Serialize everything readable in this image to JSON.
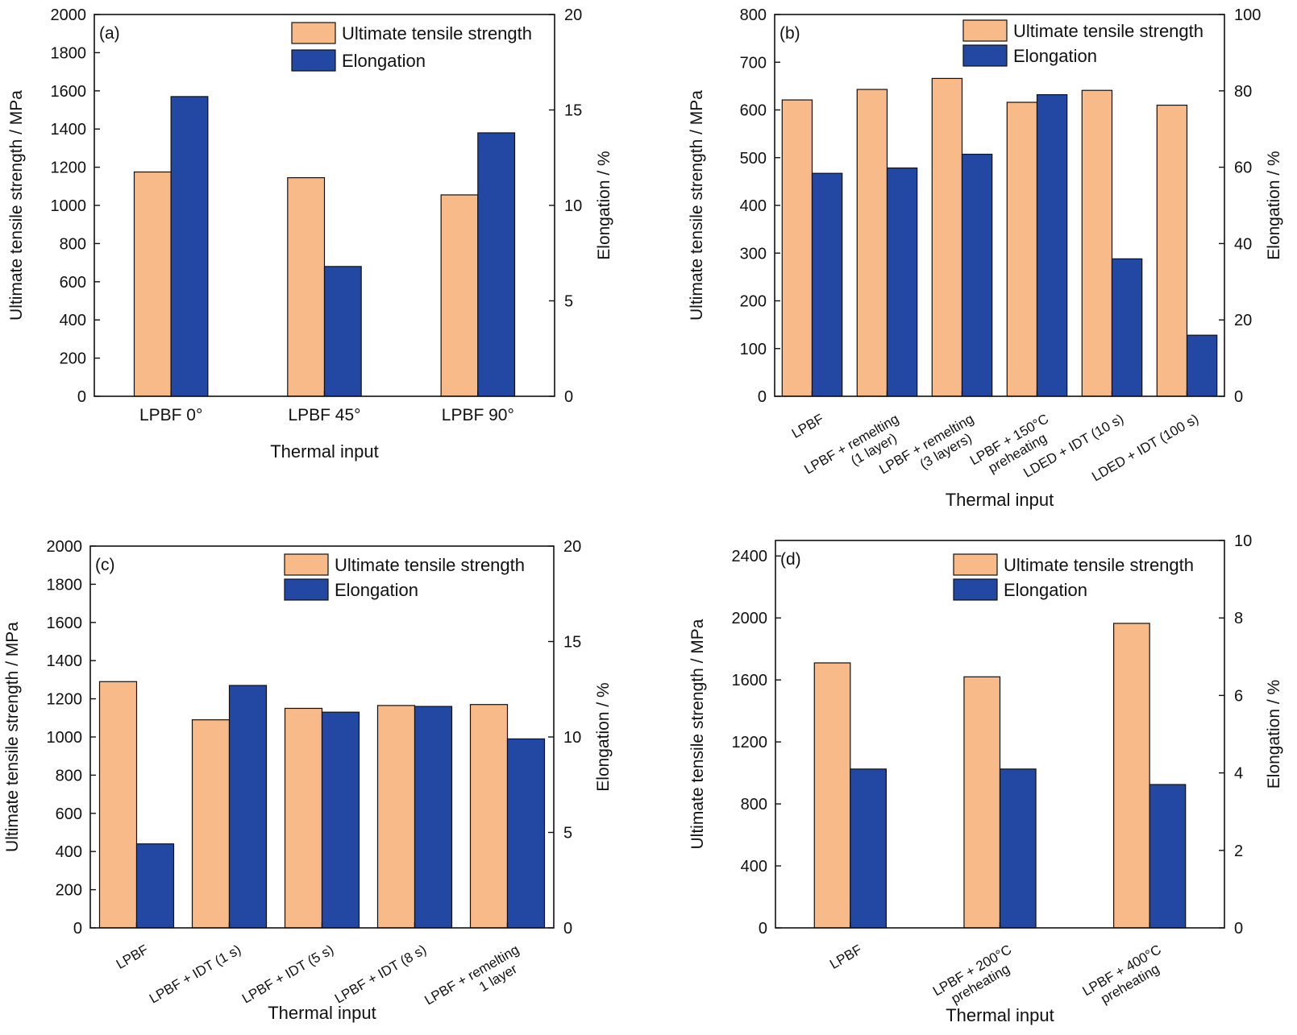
{
  "colors": {
    "uts": "#F8BA89",
    "elongation": "#2248A4",
    "axis": "#111111"
  },
  "chart_data": [
    {
      "type": "bar",
      "panel_label": "(a)",
      "xlabel": "Thermal input",
      "ylabel": "Ultimate tensile strength / MPa",
      "y2label": "Elongation / %",
      "ylim": [
        0,
        2000
      ],
      "y2lim": [
        0,
        20
      ],
      "yticks": [
        0,
        200,
        400,
        600,
        800,
        1000,
        1200,
        1400,
        1600,
        1800,
        2000
      ],
      "y2ticks": [
        0,
        5,
        10,
        15,
        20
      ],
      "categories": [
        "LPBF 0°",
        "LPBF 45°",
        "LPBF 90°"
      ],
      "rotated_labels": false,
      "legend_position": "top-right",
      "series": [
        {
          "name": "Ultimate tensile strength",
          "axis": "left",
          "values": [
            1175,
            1145,
            1055
          ]
        },
        {
          "name": "Elongation",
          "axis": "right",
          "values": [
            15.7,
            6.8,
            13.8
          ]
        }
      ]
    },
    {
      "type": "bar",
      "panel_label": "(b)",
      "xlabel": "Thermal input",
      "ylabel": "Ultimate tensile strength / MPa",
      "y2label": "Elongation / %",
      "ylim": [
        0,
        800
      ],
      "y2lim": [
        0,
        100
      ],
      "yticks": [
        0,
        100,
        200,
        300,
        400,
        500,
        600,
        700,
        800
      ],
      "y2ticks": [
        0,
        20,
        40,
        60,
        80,
        100
      ],
      "categories": [
        [
          "LPBF"
        ],
        [
          "LPBF + remelting",
          "(1 layer)"
        ],
        [
          "LPBF + remelting",
          "(3 layers)"
        ],
        [
          "LPBF + 150°C",
          "preheating"
        ],
        [
          "LDED + IDT (10 s)"
        ],
        [
          "LDED + IDT (100 s)"
        ]
      ],
      "rotated_labels": true,
      "legend_position": "top-right",
      "series": [
        {
          "name": "Ultimate tensile strength",
          "axis": "left",
          "values": [
            621,
            643,
            666,
            616,
            641,
            610
          ]
        },
        {
          "name": "Elongation",
          "axis": "right",
          "values": [
            58.4,
            59.8,
            63.4,
            79.0,
            36.0,
            16.0
          ]
        }
      ]
    },
    {
      "type": "bar",
      "panel_label": "(c)",
      "xlabel": "Thermal input",
      "ylabel": "Ultimate tensile strength / MPa",
      "y2label": "Elongation / %",
      "ylim": [
        0,
        2000
      ],
      "y2lim": [
        0,
        20
      ],
      "yticks": [
        0,
        200,
        400,
        600,
        800,
        1000,
        1200,
        1400,
        1600,
        1800,
        2000
      ],
      "y2ticks": [
        0,
        5,
        10,
        15,
        20
      ],
      "categories": [
        [
          "LPBF"
        ],
        [
          "LPBF + IDT (1 s)"
        ],
        [
          "LPBF + IDT (5 s)"
        ],
        [
          "LPBF + IDT (8 s)"
        ],
        [
          "LPBF + remelting",
          "1 layer"
        ]
      ],
      "rotated_labels": true,
      "legend_position": "top-right",
      "series": [
        {
          "name": "Ultimate tensile strength",
          "axis": "left",
          "values": [
            1290,
            1090,
            1150,
            1165,
            1170
          ]
        },
        {
          "name": "Elongation",
          "axis": "right",
          "values": [
            4.4,
            12.7,
            11.3,
            11.6,
            9.9
          ]
        }
      ]
    },
    {
      "type": "bar",
      "panel_label": "(d)",
      "xlabel": "Thermal input",
      "ylabel": "Ultimate tensile strength / MPa",
      "y2label": "Elongation / %",
      "ylim": [
        0,
        2500
      ],
      "y2lim": [
        0,
        10
      ],
      "yticks": [
        0,
        400,
        800,
        1200,
        1600,
        2000,
        2400
      ],
      "y2ticks": [
        0,
        2,
        4,
        6,
        8,
        10
      ],
      "categories": [
        [
          "LPBF"
        ],
        [
          "LPBF + 200°C",
          "preheating"
        ],
        [
          "LPBF + 400°C",
          "preheating"
        ]
      ],
      "rotated_labels": true,
      "legend_position": "top-right",
      "series": [
        {
          "name": "Ultimate tensile strength",
          "axis": "left",
          "values": [
            1710,
            1620,
            1965
          ]
        },
        {
          "name": "Elongation",
          "axis": "right",
          "values": [
            4.1,
            4.1,
            3.7
          ]
        }
      ]
    }
  ]
}
